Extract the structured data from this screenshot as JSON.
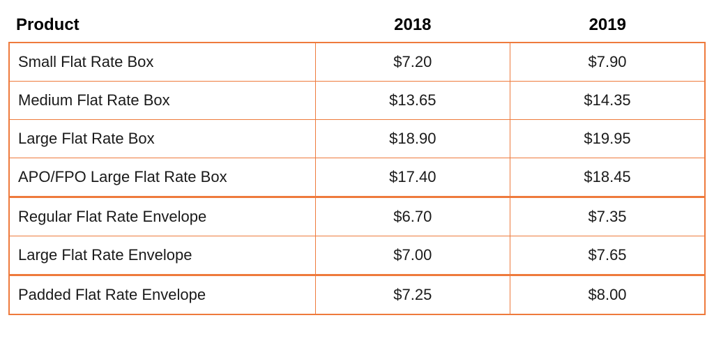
{
  "table": {
    "type": "table",
    "border_color": "#ee7a3c",
    "background_color": "#ffffff",
    "text_color": "#1a1a1a",
    "header_text_color": "#000000",
    "header_fontsize": 24,
    "body_fontsize": 22,
    "outer_border_width": 2,
    "inner_border_width": 1,
    "segment_border_width": 3,
    "group_sizes": [
      4,
      2,
      1
    ],
    "columns": [
      {
        "key": "product",
        "label": "Product",
        "align": "left",
        "width_pct": 44
      },
      {
        "key": "y2018",
        "label": "2018",
        "align": "center",
        "width_pct": 28
      },
      {
        "key": "y2019",
        "label": "2019",
        "align": "center",
        "width_pct": 28
      }
    ],
    "rows": [
      {
        "product": "Small Flat Rate Box",
        "y2018": "$7.20",
        "y2019": "$7.90"
      },
      {
        "product": "Medium Flat Rate Box",
        "y2018": "$13.65",
        "y2019": "$14.35"
      },
      {
        "product": "Large Flat Rate Box",
        "y2018": "$18.90",
        "y2019": "$19.95"
      },
      {
        "product": "APO/FPO Large Flat Rate Box",
        "y2018": "$17.40",
        "y2019": "$18.45"
      },
      {
        "product": "Regular Flat Rate Envelope",
        "y2018": "$6.70",
        "y2019": "$7.35"
      },
      {
        "product": "Large Flat Rate Envelope",
        "y2018": "$7.00",
        "y2019": "$7.65"
      },
      {
        "product": "Padded Flat Rate Envelope",
        "y2018": "$7.25",
        "y2019": "$8.00"
      }
    ]
  }
}
